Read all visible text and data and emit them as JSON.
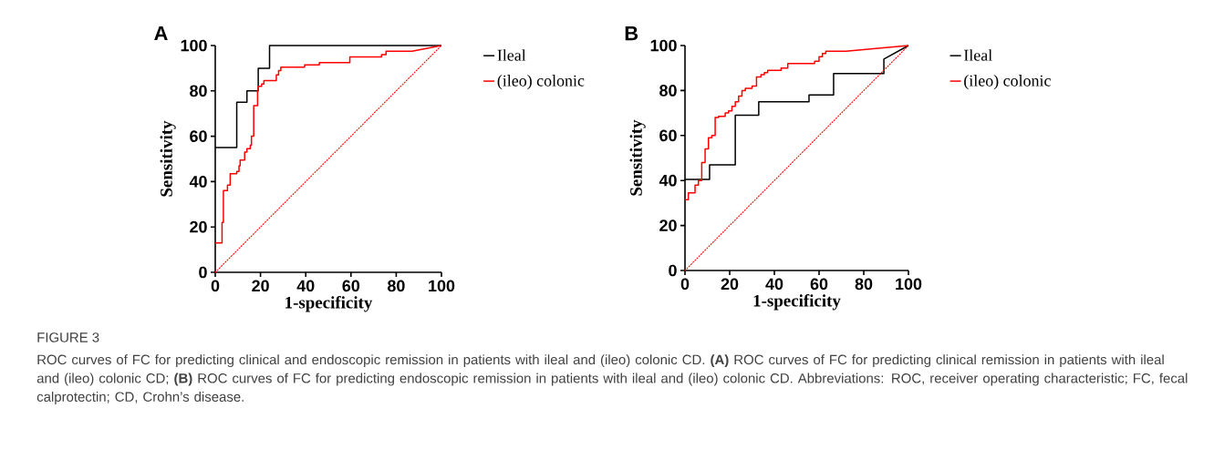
{
  "chart_data": [
    {
      "type": "line",
      "title": "A",
      "xlabel": "1-specificity",
      "ylabel": "Sensitivity",
      "xlim": [
        0,
        100
      ],
      "ylim": [
        0,
        100
      ],
      "xticks": [
        0,
        20,
        40,
        60,
        80,
        100
      ],
      "yticks": [
        0,
        20,
        40,
        60,
        80,
        100
      ],
      "legend": "right",
      "annotations": [
        "FIGURE 3",
        "ROC curves of FC for predicting clinical and endoscopic remission in patients with ileal and (ileo) colonic CD. **(A)** ROC curves of FC for predicting clinical remission in patients with ileal and (ileo) colonic CD; **(B)** ROC curves of FC for predicting endoscopic remission in patients with ileal and (ileo) colonic CD. Abbreviations: ROC, receiver operating characteristic; FC, fecal calprotectin; CD, Crohn’s disease."
      ],
      "series": [
        {
          "color": "#ff0000",
          "line_style": "dotted",
          "x": [
            0,
            100
          ],
          "values": [
            0,
            100
          ]
        },
        {
          "name": "Ileal",
          "color": "#000000",
          "x": [
            0,
            9.5,
            9.5,
            14,
            14,
            19,
            19,
            24,
            24,
            100
          ],
          "values": [
            55,
            55,
            75,
            75,
            80,
            80,
            90,
            90,
            100,
            100
          ]
        },
        {
          "name": "(ileo) colonic",
          "color": "#ff0000",
          "x": [
            0,
            3,
            3,
            3.6,
            3.6,
            5.4,
            5.4,
            6.6,
            6.6,
            9.5,
            9.5,
            10.5,
            10.5,
            11,
            11,
            13,
            13,
            14,
            14,
            15.5,
            15.5,
            16,
            16,
            17,
            17,
            18.7,
            18.7,
            19,
            19,
            20.5,
            20.5,
            21.5,
            21.5,
            27,
            27,
            28,
            28,
            29,
            29,
            39.5,
            39.5,
            46,
            46,
            59.5,
            59.5,
            73.5,
            73.5,
            75.5,
            75.5,
            87,
            100
          ],
          "values": [
            13,
            13,
            22,
            22,
            36,
            36,
            38.5,
            38.5,
            43.5,
            43.5,
            44.5,
            44.5,
            47,
            47,
            49.5,
            49.5,
            53,
            53,
            54.5,
            54.5,
            56,
            56,
            60,
            60,
            73.5,
            73.5,
            80,
            80,
            82,
            82,
            83,
            83,
            84.5,
            84.5,
            87,
            87,
            89,
            89,
            90.5,
            90.5,
            91.5,
            91.5,
            92.5,
            92.5,
            95,
            95,
            96,
            96,
            97.5,
            97.5,
            100
          ]
        }
      ]
    },
    {
      "type": "line",
      "title": "B",
      "xlabel": "1-specificity",
      "ylabel": "Sensitivity",
      "xlim": [
        0,
        100
      ],
      "ylim": [
        0,
        100
      ],
      "xticks": [
        0,
        20,
        40,
        60,
        80,
        100
      ],
      "yticks": [
        0,
        20,
        40,
        60,
        80,
        100
      ],
      "legend": "right",
      "series": [
        {
          "color": "#ff0000",
          "line_style": "dotted",
          "x": [
            0,
            100
          ],
          "values": [
            0,
            100
          ]
        },
        {
          "name": "Ileal",
          "color": "#000000",
          "x": [
            0,
            11,
            11,
            22.5,
            22.5,
            33,
            33,
            55.5,
            55.5,
            66.5,
            66.5,
            89,
            89,
            100
          ],
          "values": [
            40.5,
            40.5,
            47,
            47,
            69,
            69,
            75,
            75,
            78,
            78,
            87.5,
            87.5,
            94,
            100
          ]
        },
        {
          "name": "(ileo) colonic",
          "color": "#ff0000",
          "x": [
            0,
            1.5,
            1.5,
            4.5,
            4.5,
            6,
            6,
            7.5,
            7.5,
            9,
            9,
            10.5,
            10.5,
            12,
            12,
            13.5,
            13.5,
            15,
            15,
            18,
            18,
            19.5,
            19.5,
            21,
            21,
            22.5,
            22.5,
            24,
            24,
            25.5,
            25.5,
            27,
            27,
            30,
            30,
            32,
            32,
            34,
            34,
            35.5,
            35.5,
            37,
            37,
            43,
            43,
            46,
            46,
            58,
            58,
            60,
            60,
            61.5,
            61.5,
            63,
            63,
            72,
            100
          ],
          "values": [
            31.5,
            31.5,
            34.5,
            34.5,
            38,
            38,
            40,
            40,
            48,
            48,
            54,
            54,
            59,
            59,
            60,
            60,
            68,
            68,
            68.5,
            68.5,
            70,
            70,
            71,
            71,
            73,
            73,
            75,
            75,
            77.5,
            77.5,
            80,
            80,
            81,
            81,
            82,
            82,
            86,
            86,
            87,
            87,
            88,
            88,
            89,
            89,
            90,
            90,
            92,
            92,
            93,
            93,
            95,
            95,
            96.5,
            96.5,
            97.5,
            97.5,
            100
          ]
        }
      ]
    }
  ]
}
